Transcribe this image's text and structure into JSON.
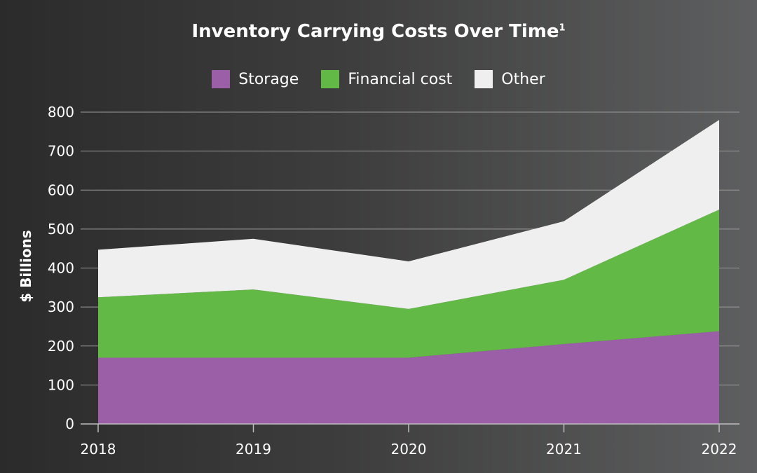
{
  "chart_data": {
    "type": "area",
    "stacked": true,
    "title": "Inventory Carrying Costs Over Time",
    "title_footnote": "1",
    "xlabel": "",
    "ylabel": "$ Billions",
    "x": [
      "2018",
      "2019",
      "2020",
      "2021",
      "2022"
    ],
    "ylim": [
      0,
      800
    ],
    "yticks": [
      "0",
      "100",
      "200",
      "300",
      "400",
      "500",
      "600",
      "700",
      "800"
    ],
    "grid": true,
    "legend_position": "top-center",
    "series": [
      {
        "name": "Storage",
        "color": "#9b5fa8",
        "values": [
          170,
          170,
          170,
          205,
          238
        ]
      },
      {
        "name": "Financial cost",
        "color": "#62b946",
        "values": [
          155,
          175,
          125,
          165,
          312
        ]
      },
      {
        "name": "Other",
        "color": "#efefef",
        "values": [
          122,
          130,
          122,
          150,
          230
        ]
      }
    ]
  }
}
